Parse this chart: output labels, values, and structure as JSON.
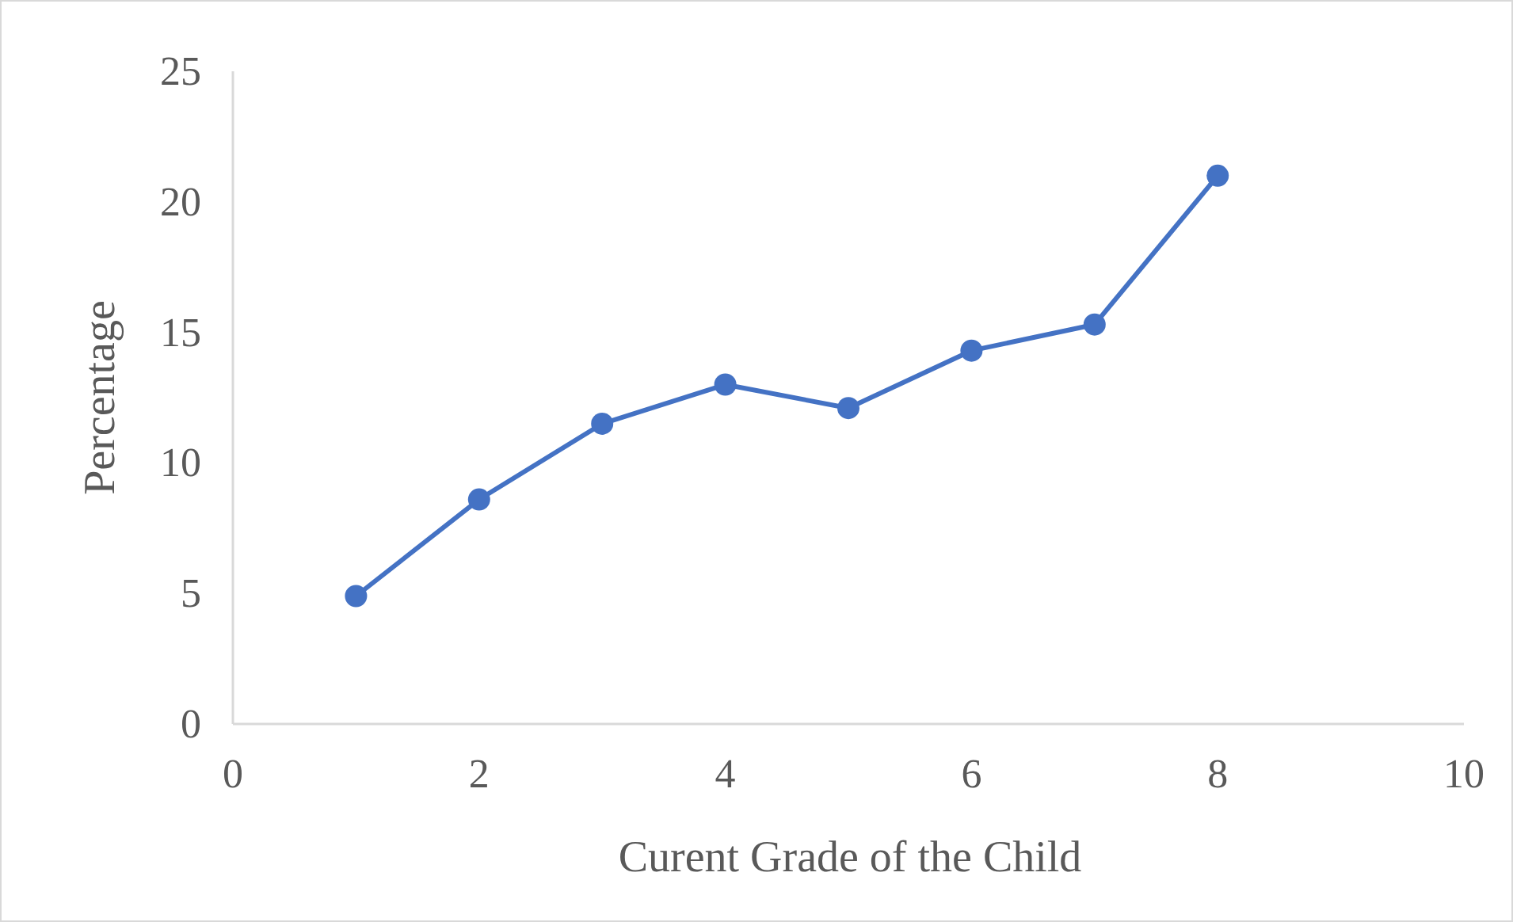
{
  "chart_data": {
    "type": "line",
    "xlabel": "Curent Grade of the Child",
    "ylabel": "Percentage",
    "x": [
      1,
      2,
      3,
      4,
      5,
      6,
      7,
      8
    ],
    "series": [
      {
        "color": "#4472c4",
        "values": [
          4.9,
          8.6,
          11.5,
          13.0,
          12.1,
          14.3,
          15.3,
          21.0
        ]
      }
    ],
    "xlim": [
      0,
      10
    ],
    "xticks": [
      0,
      2,
      4,
      6,
      8,
      10
    ],
    "ylim": [
      0,
      25
    ],
    "yticks": [
      0,
      5,
      10,
      15,
      20,
      25
    ],
    "grid": false,
    "marker": "circle",
    "line_style": "solid"
  }
}
